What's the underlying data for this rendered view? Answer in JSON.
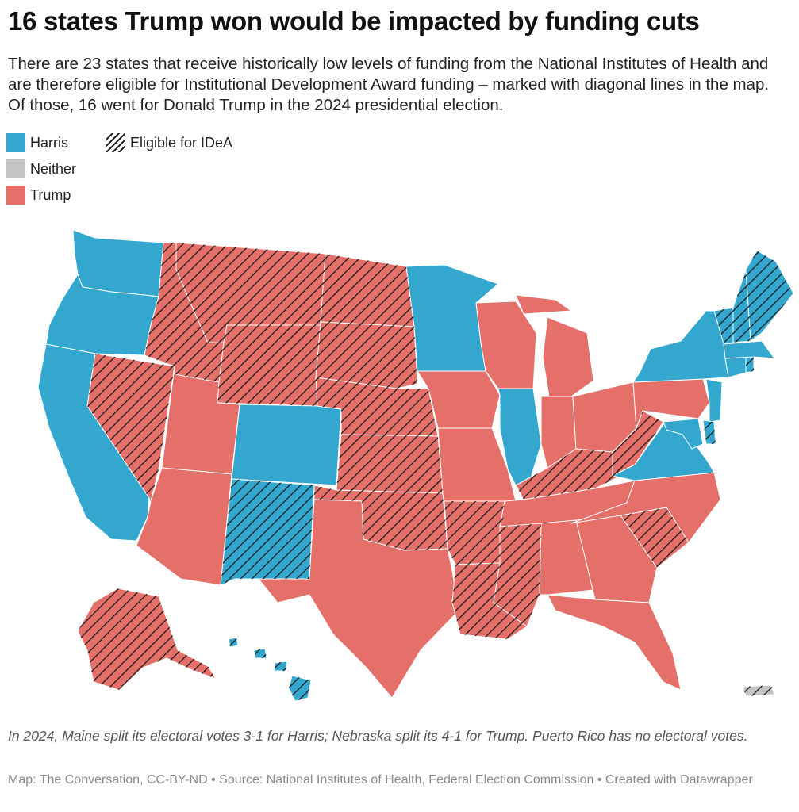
{
  "title": "16 states Trump won would be impacted by funding cuts",
  "description": "There are 23 states that receive historically low levels of funding from the National Institutes of Health and are therefore eligible for Institutional Development Award funding – marked with diagonal lines in the map. Of those, 16 went for Donald Trump in the 2024 presidential election.",
  "legend": {
    "harris": "Harris",
    "neither": "Neither",
    "trump": "Trump",
    "idea": "Eligible for IDeA"
  },
  "colors": {
    "harris": "#33a7ce",
    "neither": "#c4c4c4",
    "trump": "#e5706a",
    "hatch": "#1a1a1a"
  },
  "states": [
    {
      "abbr": "WA",
      "winner": "harris",
      "idea": false
    },
    {
      "abbr": "OR",
      "winner": "harris",
      "idea": false
    },
    {
      "abbr": "CA",
      "winner": "harris",
      "idea": false
    },
    {
      "abbr": "NV",
      "winner": "trump",
      "idea": true
    },
    {
      "abbr": "ID",
      "winner": "trump",
      "idea": true
    },
    {
      "abbr": "MT",
      "winner": "trump",
      "idea": true
    },
    {
      "abbr": "WY",
      "winner": "trump",
      "idea": true
    },
    {
      "abbr": "UT",
      "winner": "trump",
      "idea": false
    },
    {
      "abbr": "AZ",
      "winner": "trump",
      "idea": false
    },
    {
      "abbr": "CO",
      "winner": "harris",
      "idea": false
    },
    {
      "abbr": "NM",
      "winner": "harris",
      "idea": true
    },
    {
      "abbr": "ND",
      "winner": "trump",
      "idea": true
    },
    {
      "abbr": "SD",
      "winner": "trump",
      "idea": true
    },
    {
      "abbr": "NE",
      "winner": "trump",
      "idea": true
    },
    {
      "abbr": "KS",
      "winner": "trump",
      "idea": true
    },
    {
      "abbr": "OK",
      "winner": "trump",
      "idea": true
    },
    {
      "abbr": "TX",
      "winner": "trump",
      "idea": false
    },
    {
      "abbr": "MN",
      "winner": "harris",
      "idea": false
    },
    {
      "abbr": "IA",
      "winner": "trump",
      "idea": false
    },
    {
      "abbr": "MO",
      "winner": "trump",
      "idea": false
    },
    {
      "abbr": "AR",
      "winner": "trump",
      "idea": true
    },
    {
      "abbr": "LA",
      "winner": "trump",
      "idea": true
    },
    {
      "abbr": "WI",
      "winner": "trump",
      "idea": false
    },
    {
      "abbr": "IL",
      "winner": "harris",
      "idea": false
    },
    {
      "abbr": "MI",
      "winner": "trump",
      "idea": false
    },
    {
      "abbr": "IN",
      "winner": "trump",
      "idea": false
    },
    {
      "abbr": "OH",
      "winner": "trump",
      "idea": false
    },
    {
      "abbr": "KY",
      "winner": "trump",
      "idea": true
    },
    {
      "abbr": "TN",
      "winner": "trump",
      "idea": false
    },
    {
      "abbr": "MS",
      "winner": "trump",
      "idea": true
    },
    {
      "abbr": "AL",
      "winner": "trump",
      "idea": false
    },
    {
      "abbr": "GA",
      "winner": "trump",
      "idea": false
    },
    {
      "abbr": "FL",
      "winner": "trump",
      "idea": false
    },
    {
      "abbr": "SC",
      "winner": "trump",
      "idea": true
    },
    {
      "abbr": "NC",
      "winner": "trump",
      "idea": false
    },
    {
      "abbr": "VA",
      "winner": "harris",
      "idea": false
    },
    {
      "abbr": "WV",
      "winner": "trump",
      "idea": true
    },
    {
      "abbr": "PA",
      "winner": "trump",
      "idea": false
    },
    {
      "abbr": "NY",
      "winner": "harris",
      "idea": false
    },
    {
      "abbr": "NJ",
      "winner": "harris",
      "idea": false
    },
    {
      "abbr": "DE",
      "winner": "harris",
      "idea": true
    },
    {
      "abbr": "MD",
      "winner": "harris",
      "idea": false
    },
    {
      "abbr": "CT",
      "winner": "harris",
      "idea": false
    },
    {
      "abbr": "RI",
      "winner": "harris",
      "idea": true
    },
    {
      "abbr": "MA",
      "winner": "harris",
      "idea": false
    },
    {
      "abbr": "VT",
      "winner": "harris",
      "idea": true
    },
    {
      "abbr": "NH",
      "winner": "harris",
      "idea": true
    },
    {
      "abbr": "ME",
      "winner": "harris",
      "idea": true
    },
    {
      "abbr": "AK",
      "winner": "trump",
      "idea": true
    },
    {
      "abbr": "HI",
      "winner": "harris",
      "idea": true
    },
    {
      "abbr": "PR",
      "winner": "neither",
      "idea": true
    }
  ],
  "note": "In 2024, Maine split its electoral votes 3-1 for Harris; Nebraska split its 4-1 for Trump. Puerto Rico has no electoral votes.",
  "source": "Map: The Conversation, CC-BY-ND • Source: National Institutes of Health, Federal Election Commission • Created with Datawrapper"
}
